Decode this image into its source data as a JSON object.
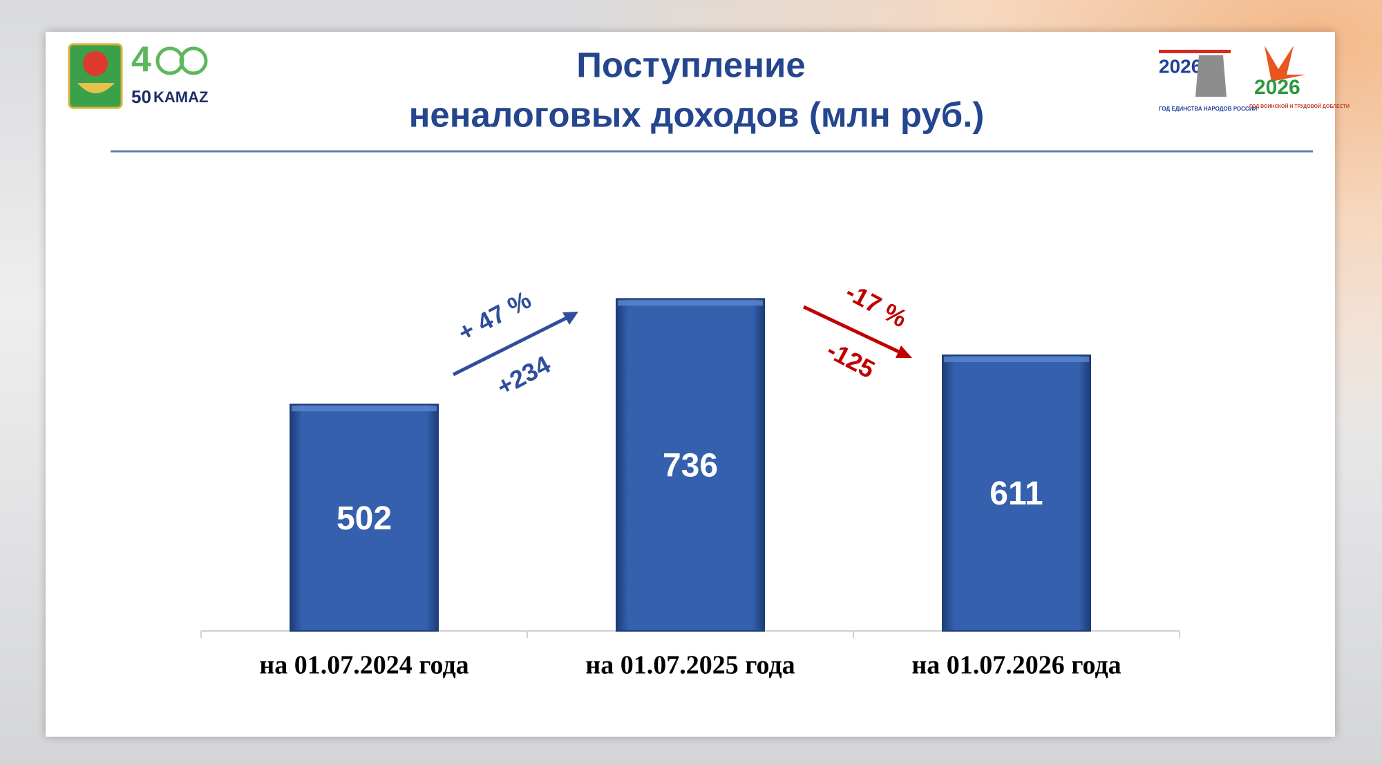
{
  "header": {
    "logos": [
      "50",
      "KAMAZ",
      "2026",
      "ГОД ЕДИНСТВА НАРОДОВ РОССИИ",
      "2026",
      "ГОД ВОИНСКОЙ И ТРУДОВОЙ ДОБЛЕСТИ"
    ]
  },
  "chart_data": {
    "type": "bar",
    "title": [
      "Поступление",
      "неналоговых доходов (млн руб.)"
    ],
    "categories": [
      "на 01.07.2024 года",
      "на 01.07.2025 года",
      "на 01.07.2026 года"
    ],
    "values": [
      502,
      736,
      611
    ],
    "color": "#2e5aa6",
    "ylim": [
      0,
      1000
    ],
    "annotations": [
      {
        "text": "+ 47 %",
        "color": "#2f4f9a"
      },
      {
        "text": "+234",
        "color": "#2f4f9a"
      },
      {
        "text": "-17 %",
        "color": "#c00000"
      },
      {
        "text": "-125",
        "color": "#c00000"
      }
    ]
  }
}
